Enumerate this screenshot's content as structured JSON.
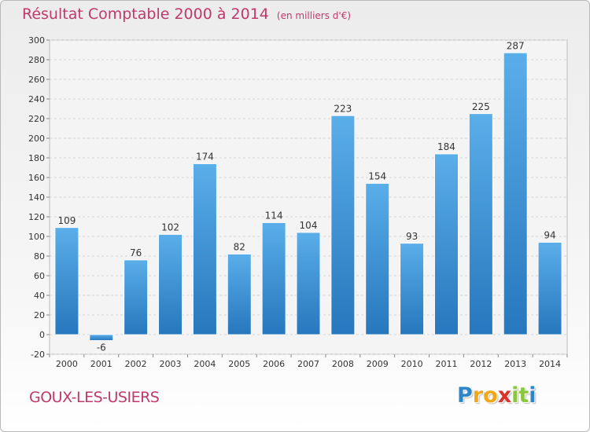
{
  "chart_data": {
    "type": "bar",
    "title": "Résultat Comptable 2000 à 2014",
    "subtitle": "(en milliers d'€)",
    "categories": [
      "2000",
      "2001",
      "2002",
      "2003",
      "2004",
      "2005",
      "2006",
      "2007",
      "2008",
      "2009",
      "2010",
      "2011",
      "2012",
      "2013",
      "2014"
    ],
    "values": [
      109,
      -6,
      76,
      102,
      174,
      82,
      114,
      104,
      223,
      154,
      93,
      184,
      225,
      287,
      94
    ],
    "ylim": [
      -20,
      300
    ],
    "yticks": [
      -20,
      0,
      20,
      40,
      60,
      80,
      100,
      120,
      140,
      160,
      180,
      200,
      220,
      240,
      260,
      280,
      300
    ],
    "grid": true,
    "bar_color": "#3a8fd6"
  },
  "location": "GOUX-LES-USIERS",
  "logo": {
    "letters": [
      "P",
      "r",
      "o",
      "x",
      "i",
      "t",
      "i"
    ],
    "colors": [
      "#2e86c9",
      "#f2a71b",
      "#f2a71b",
      "#d9342b",
      "#8cc63e",
      "#8cc63e",
      "#2e86c9"
    ]
  }
}
